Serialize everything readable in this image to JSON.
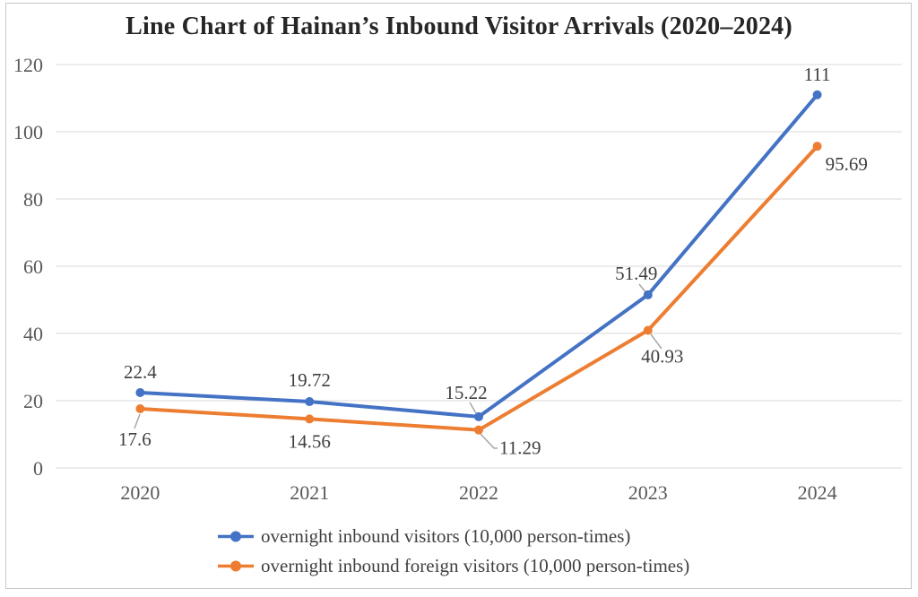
{
  "window": {
    "background_color": "#FFFFFF",
    "border_color": "#C6C6C6"
  },
  "chart_data": {
    "type": "line",
    "title": "Line Chart of Hainan’s Inbound Visitor Arrivals (2020–2024)",
    "categories": [
      "2020",
      "2021",
      "2022",
      "2023",
      "2024"
    ],
    "series": [
      {
        "name": "overnight inbound visitors (10,000 person-times)",
        "color": "#4472C4",
        "values": [
          22.4,
          19.72,
          15.22,
          51.49,
          111
        ],
        "data_labels": [
          "22.4",
          "19.72",
          "15.22",
          "51.49",
          "111"
        ]
      },
      {
        "name": "overnight inbound foreign visitors (10,000 person-times)",
        "color": "#ED7D31",
        "values": [
          17.6,
          14.56,
          11.29,
          40.93,
          95.69
        ],
        "data_labels": [
          "17.6",
          "14.56",
          "11.29",
          "40.93",
          "95.69"
        ]
      }
    ],
    "xlabel": "",
    "ylabel": "",
    "ylim": [
      0,
      120
    ],
    "y_tick_step": 20,
    "y_ticks": [
      "0",
      "20",
      "40",
      "60",
      "80",
      "100",
      "120"
    ],
    "grid": true,
    "legend_position": "bottom",
    "gridline_color": "#D9D9D9",
    "tick_label_color": "#595959",
    "data_label_color": "#3F3F3F",
    "leader_line_color": "#A6A6A6"
  }
}
